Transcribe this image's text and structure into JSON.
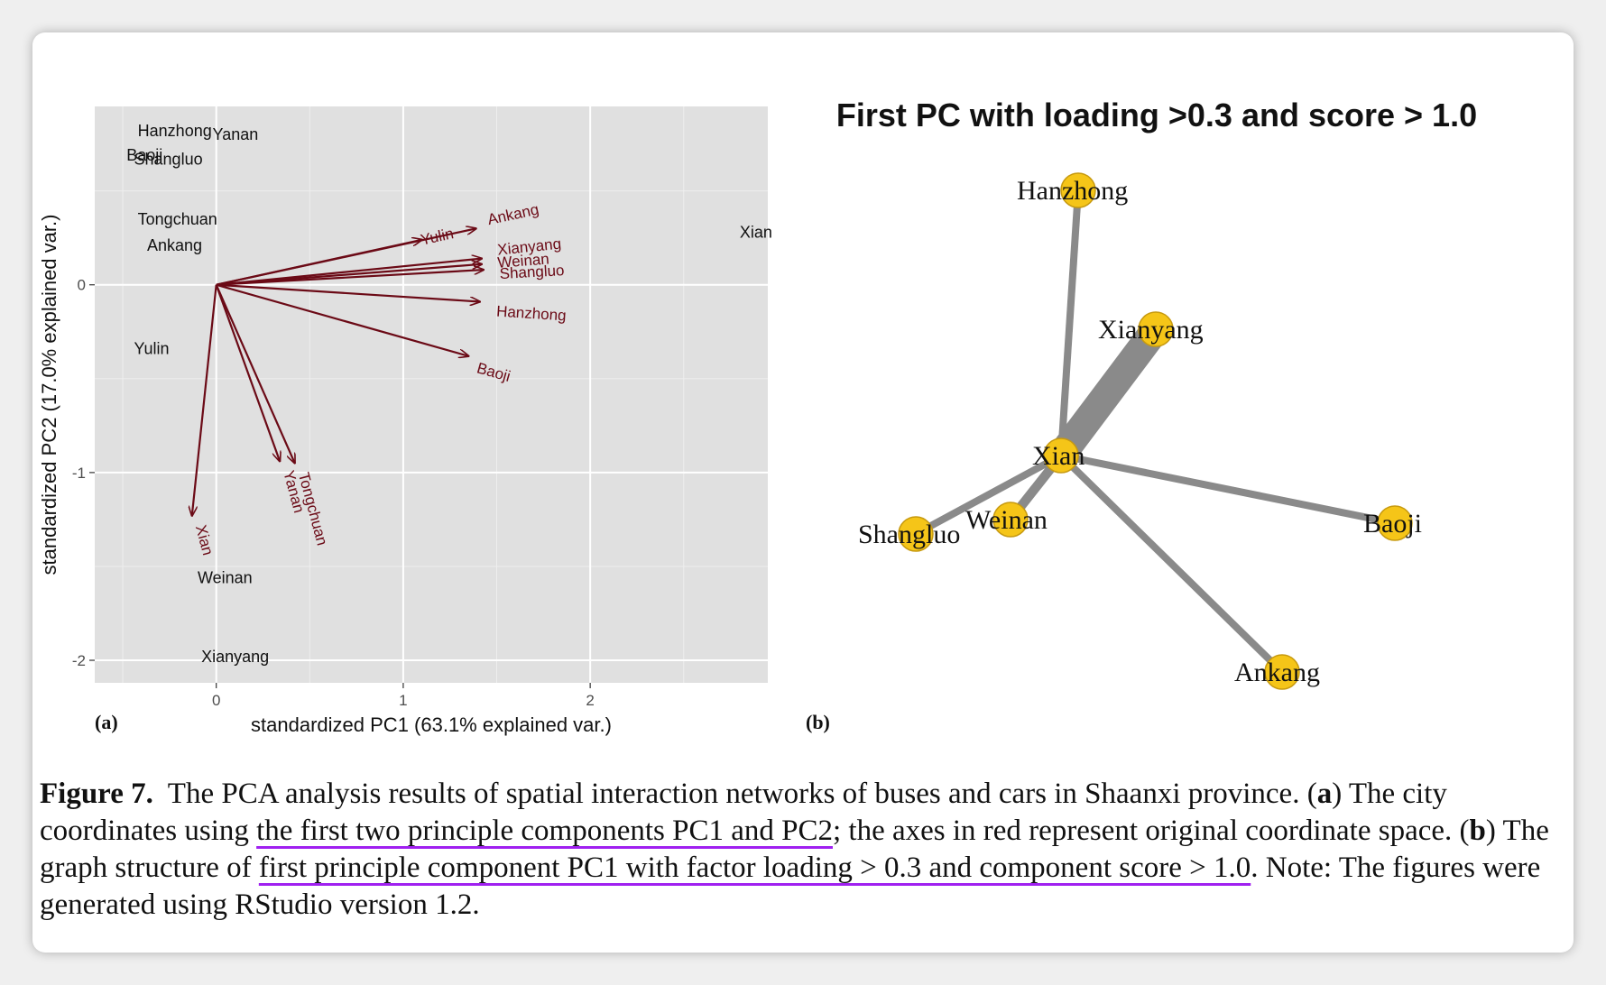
{
  "chart_data": [
    {
      "type": "scatter",
      "subtype": "pca-biplot",
      "panel_label": "(a)",
      "xlabel": "standardized PC1 (63.1% explained var.)",
      "ylabel": "standardized PC2 (17.0% explained var.)",
      "xlim": [
        -0.65,
        2.95
      ],
      "ylim": [
        -2.12,
        0.95
      ],
      "x_ticks": [
        0,
        1,
        2
      ],
      "y_ticks": [
        0,
        -1,
        -2
      ],
      "grid": true,
      "background": "#e0e0e0",
      "points": [
        {
          "label": "Hanzhong",
          "x": -0.42,
          "y": 0.82
        },
        {
          "label": "Yanan",
          "x": -0.02,
          "y": 0.8
        },
        {
          "label": "Baoji",
          "x": -0.48,
          "y": 0.69
        },
        {
          "label": "Shangluo",
          "x": -0.44,
          "y": 0.67
        },
        {
          "label": "Tongchuan",
          "x": -0.42,
          "y": 0.35
        },
        {
          "label": "Ankang",
          "x": -0.37,
          "y": 0.21
        },
        {
          "label": "Yulin",
          "x": -0.44,
          "y": -0.34
        },
        {
          "label": "Xian",
          "x": 2.8,
          "y": 0.28
        },
        {
          "label": "Weinan",
          "x": -0.1,
          "y": -1.56
        },
        {
          "label": "Xianyang",
          "x": -0.08,
          "y": -1.98
        }
      ],
      "loadings": [
        {
          "label": "Yulin",
          "x": 1.1,
          "y": 0.24
        },
        {
          "label": "Ankang",
          "x": 1.39,
          "y": 0.3
        },
        {
          "label": "Xianyang",
          "x": 1.42,
          "y": 0.14
        },
        {
          "label": "Weinan",
          "x": 1.42,
          "y": 0.11
        },
        {
          "label": "Shangluo",
          "x": 1.43,
          "y": 0.08
        },
        {
          "label": "Hanzhong",
          "x": 1.41,
          "y": -0.09
        },
        {
          "label": "Baoji",
          "x": 1.35,
          "y": -0.38
        },
        {
          "label": "Xian",
          "x": -0.13,
          "y": -1.23
        },
        {
          "label": "Yanan",
          "x": 0.34,
          "y": -0.94
        },
        {
          "label": "Tongchuan",
          "x": 0.42,
          "y": -0.95
        }
      ]
    },
    {
      "type": "network",
      "panel_label": "(b)",
      "title": "First PC with loading >0.3 and score > 1.0",
      "node_color": "#f5c518",
      "edge_color": "#8a8a8a",
      "nodes": [
        "Hanzhong",
        "Xianyang",
        "Xian",
        "Shangluo",
        "Weinan",
        "Baoji",
        "Ankang"
      ],
      "edges": [
        {
          "from": "Xian",
          "to": "Hanzhong",
          "weight": 1
        },
        {
          "from": "Xian",
          "to": "Xianyang",
          "weight": 4
        },
        {
          "from": "Xian",
          "to": "Shangluo",
          "weight": 1
        },
        {
          "from": "Xian",
          "to": "Weinan",
          "weight": 1.3
        },
        {
          "from": "Xian",
          "to": "Baoji",
          "weight": 1
        },
        {
          "from": "Xian",
          "to": "Ankang",
          "weight": 1
        }
      ]
    }
  ],
  "caption": {
    "figure_label": "Figure 7.",
    "text_1": "The PCA analysis results of spatial interaction networks of buses and cars in Shaanxi province. (",
    "a_label": "a",
    "text_2": ") The city coordinates using ",
    "underline_1": "the first two principle components PC1 and PC2",
    "text_3": "; the axes in red represent original coordinate space. (",
    "b_label": "b",
    "text_4": ") The graph structure of ",
    "underline_2": "first principle component PC1 with factor loading > 0.3 and component score > 1.0",
    "text_5": ". Note: The figures were generated using RStudio version 1.2."
  },
  "colors": {
    "arrow": "#6b0a16",
    "underline": "#a020f0"
  }
}
